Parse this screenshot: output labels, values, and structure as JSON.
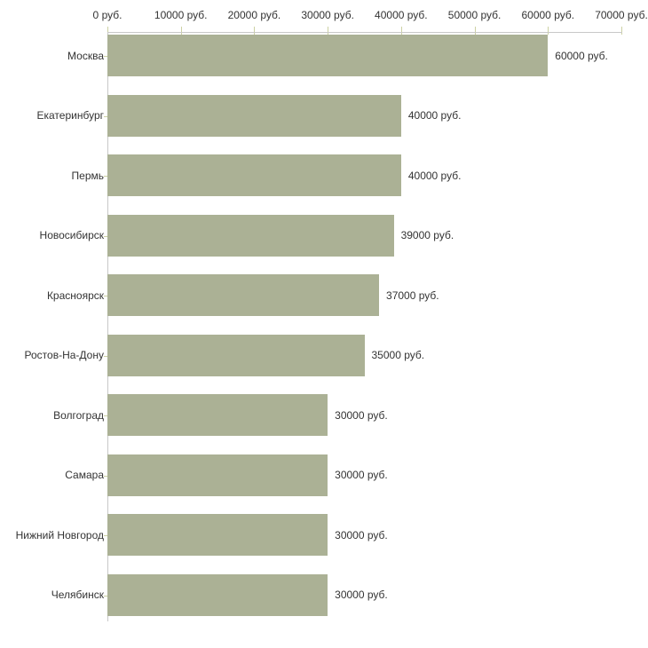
{
  "chart_data": {
    "type": "bar",
    "orientation": "horizontal",
    "categories": [
      "Москва",
      "Екатеринбург",
      "Пермь",
      "Новосибирск",
      "Красноярск",
      "Ростов-На-Дону",
      "Волгоград",
      "Самара",
      "Нижний Новгород",
      "Челябинск"
    ],
    "values": [
      60000,
      40000,
      40000,
      39000,
      37000,
      35000,
      30000,
      30000,
      30000,
      30000
    ],
    "value_labels": [
      "60000 руб.",
      "40000 руб.",
      "40000 руб.",
      "39000 руб.",
      "37000 руб.",
      "35000 руб.",
      "30000 руб.",
      "30000 руб.",
      "30000 руб.",
      "30000 руб."
    ],
    "x_axis": {
      "position": "top",
      "min": 0,
      "max": 70000,
      "tick_values": [
        0,
        10000,
        20000,
        30000,
        40000,
        50000,
        60000,
        70000
      ],
      "tick_labels": [
        "0 руб.",
        "10000 руб.",
        "20000 руб.",
        "30000 руб.",
        "40000 руб.",
        "50000 руб.",
        "60000 руб.",
        "70000 руб."
      ]
    },
    "unit_suffix": " руб.",
    "grid": false,
    "legend": false,
    "colors": {
      "bar": "#abb195",
      "axis_line": "#c8c8c8",
      "tick": "#ccd1a3",
      "text": "#333333",
      "background": "#ffffff"
    }
  }
}
